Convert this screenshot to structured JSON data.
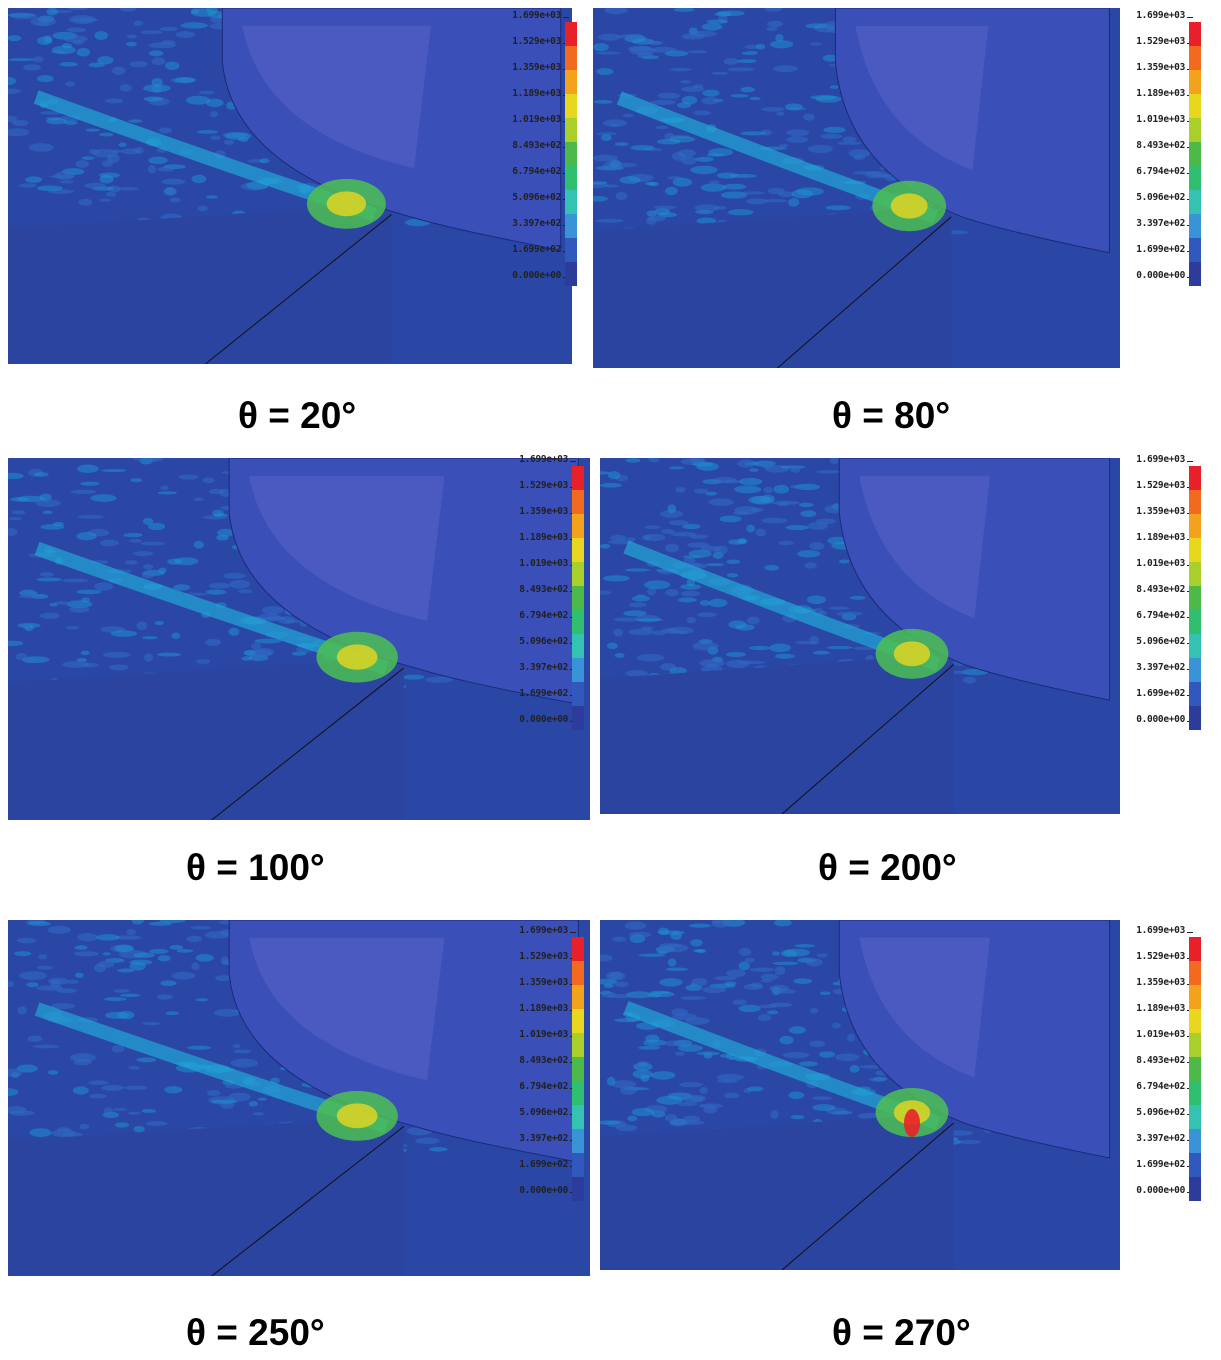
{
  "panels": [
    {
      "caption": "θ = 20°"
    },
    {
      "caption": "θ = 80°"
    },
    {
      "caption": "θ = 100°"
    },
    {
      "caption": "θ = 200°"
    },
    {
      "caption": "θ = 250°"
    },
    {
      "caption": "θ = 270°"
    }
  ],
  "legend": {
    "labels": [
      "1.699e+03",
      "1.529e+03",
      "1.359e+03",
      "1.189e+03",
      "1.019e+03",
      "8.493e+02",
      "6.794e+02",
      "5.096e+02",
      "3.397e+02",
      "1.699e+02",
      "0.000e+00"
    ],
    "colors": [
      "#e8202a",
      "#f26a1f",
      "#f3a21c",
      "#e8d61f",
      "#a9cf2a",
      "#4cb948",
      "#2fbf6e",
      "#34c3b2",
      "#3a93d6",
      "#3158bd",
      "#2d3b9b"
    ]
  },
  "colors": {
    "background_blue": "#2a47a6",
    "tool_blue": "#3a4fb8",
    "stress_cyan": "#22a7d6",
    "stress_green": "#4cbf52",
    "stress_yellow": "#e8d61f",
    "stress_red": "#e8202a"
  }
}
